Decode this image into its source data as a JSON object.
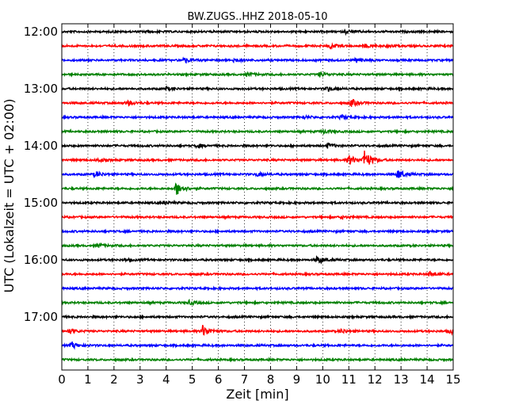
{
  "chart_data": {
    "type": "line",
    "title": "BW.ZUGS..HHZ 2018-05-10",
    "xlabel": "Zeit  [min]",
    "ylabel": "UTC (Lokalzeit = UTC + 02:00)",
    "xlim": [
      0,
      15
    ],
    "x_ticks": [
      "0",
      "1",
      "2",
      "3",
      "4",
      "5",
      "6",
      "7",
      "8",
      "9",
      "10",
      "11",
      "12",
      "13",
      "14",
      "15"
    ],
    "y_ticks": [
      "12:00",
      "13:00",
      "14:00",
      "15:00",
      "16:00",
      "17:00"
    ],
    "grid": "vertical dotted",
    "colors": [
      "#000000",
      "#ff0000",
      "#0000ff",
      "#008000"
    ],
    "traces": [
      {
        "start": "12:00",
        "color": "#000000",
        "events": [
          {
            "t": 3.2,
            "amp": 1.2
          },
          {
            "t": 10.9,
            "amp": 2.0
          }
        ]
      },
      {
        "start": "12:15",
        "color": "#ff0000",
        "events": [
          {
            "t": 10.3,
            "amp": 2.5
          },
          {
            "t": 11.6,
            "amp": 2.0
          },
          {
            "t": 12.5,
            "amp": 1.3
          }
        ]
      },
      {
        "start": "12:30",
        "color": "#0000ff",
        "events": [
          {
            "t": 4.7,
            "amp": 3.0
          },
          {
            "t": 6.6,
            "amp": 2.2
          },
          {
            "t": 11.3,
            "amp": 2.5
          }
        ]
      },
      {
        "start": "12:45",
        "color": "#008000",
        "events": [
          {
            "t": 7.1,
            "amp": 2.2
          },
          {
            "t": 9.9,
            "amp": 2.8
          }
        ]
      },
      {
        "start": "13:00",
        "color": "#000000",
        "events": [
          {
            "t": 4.0,
            "amp": 1.5
          },
          {
            "t": 10.2,
            "amp": 2.8
          }
        ]
      },
      {
        "start": "13:15",
        "color": "#ff0000",
        "events": [
          {
            "t": 2.5,
            "amp": 3.0
          },
          {
            "t": 11.1,
            "amp": 4.2
          }
        ]
      },
      {
        "start": "13:30",
        "color": "#0000ff",
        "events": [
          {
            "t": 9.3,
            "amp": 1.5
          },
          {
            "t": 10.7,
            "amp": 2.0
          }
        ]
      },
      {
        "start": "13:45",
        "color": "#008000",
        "events": [
          {
            "t": 10.0,
            "amp": 2.5
          }
        ]
      },
      {
        "start": "14:00",
        "color": "#000000",
        "events": [
          {
            "t": 5.2,
            "amp": 2.2
          },
          {
            "t": 10.2,
            "amp": 2.8
          }
        ]
      },
      {
        "start": "14:15",
        "color": "#ff0000",
        "events": [
          {
            "t": 1.4,
            "amp": 2.0
          },
          {
            "t": 11.0,
            "amp": 6.0
          },
          {
            "t": 11.6,
            "amp": 11.0
          }
        ]
      },
      {
        "start": "14:30",
        "color": "#0000ff",
        "events": [
          {
            "t": 1.3,
            "amp": 3.2
          },
          {
            "t": 7.5,
            "amp": 2.2
          },
          {
            "t": 12.9,
            "amp": 5.5
          }
        ]
      },
      {
        "start": "14:45",
        "color": "#008000",
        "events": [
          {
            "t": 4.4,
            "amp": 8.0
          }
        ]
      },
      {
        "start": "15:00",
        "color": "#000000",
        "events": [
          {
            "t": 3.9,
            "amp": 1.5
          }
        ]
      },
      {
        "start": "15:15",
        "color": "#ff0000",
        "events": [
          {
            "t": 10.7,
            "amp": 1.5
          }
        ]
      },
      {
        "start": "15:30",
        "color": "#0000ff",
        "events": []
      },
      {
        "start": "15:45",
        "color": "#008000",
        "events": [
          {
            "t": 1.4,
            "amp": 2.0
          }
        ]
      },
      {
        "start": "16:00",
        "color": "#000000",
        "events": [
          {
            "t": 2.4,
            "amp": 1.2
          },
          {
            "t": 9.8,
            "amp": 4.5
          }
        ]
      },
      {
        "start": "16:15",
        "color": "#ff0000",
        "events": [
          {
            "t": 14.1,
            "amp": 2.8
          }
        ]
      },
      {
        "start": "16:30",
        "color": "#0000ff",
        "events": []
      },
      {
        "start": "16:45",
        "color": "#008000",
        "events": [
          {
            "t": 4.9,
            "amp": 2.5
          }
        ]
      },
      {
        "start": "17:00",
        "color": "#000000",
        "events": []
      },
      {
        "start": "17:15",
        "color": "#ff0000",
        "events": [
          {
            "t": 0.3,
            "amp": 2.8
          },
          {
            "t": 5.4,
            "amp": 7.0
          },
          {
            "t": 10.7,
            "amp": 2.5
          },
          {
            "t": 14.9,
            "amp": 2.8
          }
        ]
      },
      {
        "start": "17:30",
        "color": "#0000ff",
        "events": [
          {
            "t": 0.4,
            "amp": 3.5
          }
        ]
      },
      {
        "start": "17:45",
        "color": "#008000",
        "events": []
      }
    ]
  }
}
